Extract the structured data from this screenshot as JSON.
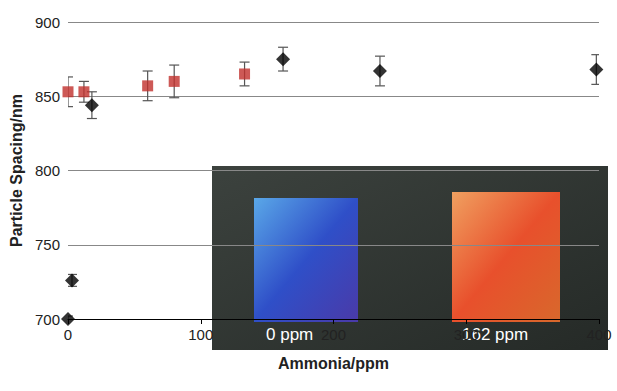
{
  "chart_data": {
    "type": "scatter",
    "x_label": "Ammonia/ppm",
    "y_label": "Particle Spacing/nm",
    "xlim": [
      0,
      400
    ],
    "xticks": [
      0,
      100,
      200,
      300,
      400
    ],
    "ylim": [
      700,
      900
    ],
    "yticks": [
      700,
      750,
      800,
      850,
      900
    ],
    "grid": true,
    "series": [
      {
        "color": "#000000",
        "marker": "diamond",
        "x": [
          0,
          3,
          18,
          162,
          235,
          398
        ],
        "values": [
          700,
          726,
          844,
          875,
          867,
          868
        ],
        "errors": [
          2,
          4,
          9,
          8,
          10,
          10
        ]
      },
      {
        "color": "#c0302c",
        "marker": "square",
        "x": [
          0,
          12,
          60,
          80,
          133
        ],
        "values": [
          853,
          853,
          857,
          860,
          865
        ],
        "errors": [
          10,
          7,
          10,
          11,
          8
        ]
      }
    ],
    "annotations": [
      "0 ppm",
      "162 ppm"
    ]
  }
}
